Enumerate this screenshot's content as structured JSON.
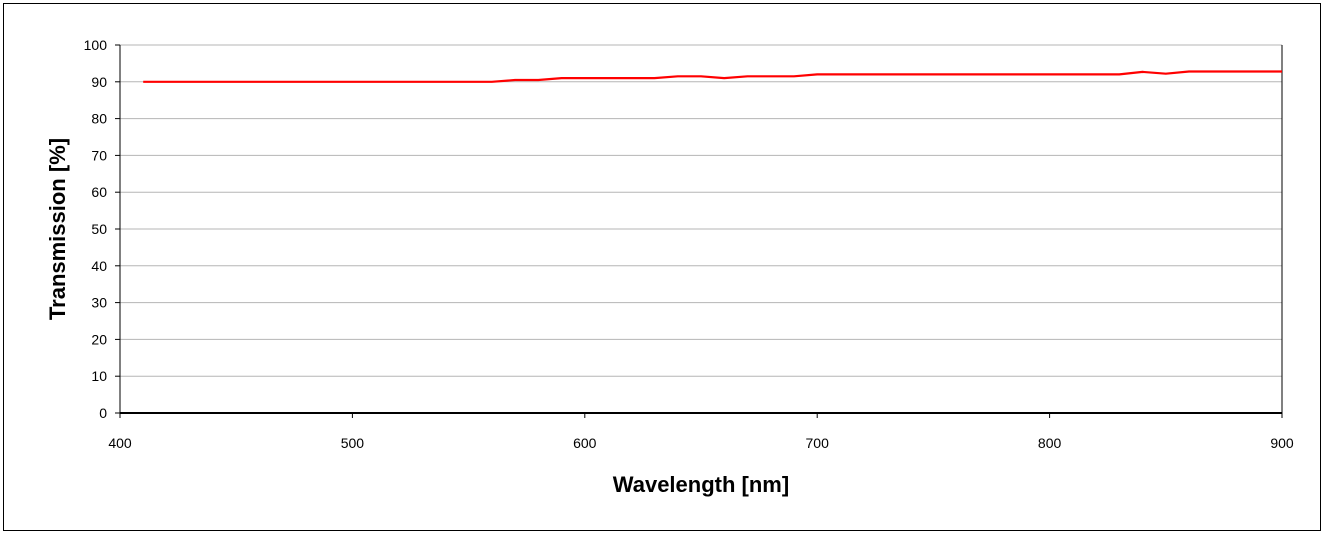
{
  "chart_data": {
    "type": "line",
    "title": "",
    "xlabel": "Wavelength [nm]",
    "ylabel": "Transmission [%]",
    "xlim": [
      400,
      900
    ],
    "ylim": [
      0,
      100
    ],
    "x_ticks": [
      400,
      500,
      600,
      700,
      800,
      900
    ],
    "y_ticks": [
      0,
      10,
      20,
      30,
      40,
      50,
      60,
      70,
      80,
      90,
      100
    ],
    "grid": "horizontal",
    "legend": "none",
    "series": [
      {
        "color": "#ff0000",
        "x": [
          410,
          420,
          430,
          440,
          450,
          460,
          470,
          480,
          490,
          500,
          510,
          520,
          530,
          540,
          550,
          560,
          570,
          580,
          590,
          600,
          610,
          620,
          630,
          640,
          650,
          660,
          670,
          680,
          690,
          700,
          710,
          720,
          730,
          740,
          750,
          760,
          770,
          780,
          790,
          800,
          810,
          820,
          830,
          840,
          850,
          860,
          870,
          880,
          890,
          900
        ],
        "y": [
          90,
          90,
          90,
          90,
          90,
          90,
          90,
          90,
          90,
          90,
          90,
          90,
          90,
          90,
          90,
          90,
          90.5,
          90.5,
          91,
          91,
          91,
          91,
          91,
          91.5,
          91.5,
          91,
          91.5,
          91.5,
          91.5,
          92,
          92,
          92,
          92,
          92,
          92,
          92,
          92,
          92,
          92,
          92,
          92,
          92,
          92,
          92.7,
          92.2,
          92.8,
          92.8,
          92.8,
          92.8,
          92.8
        ]
      }
    ]
  }
}
